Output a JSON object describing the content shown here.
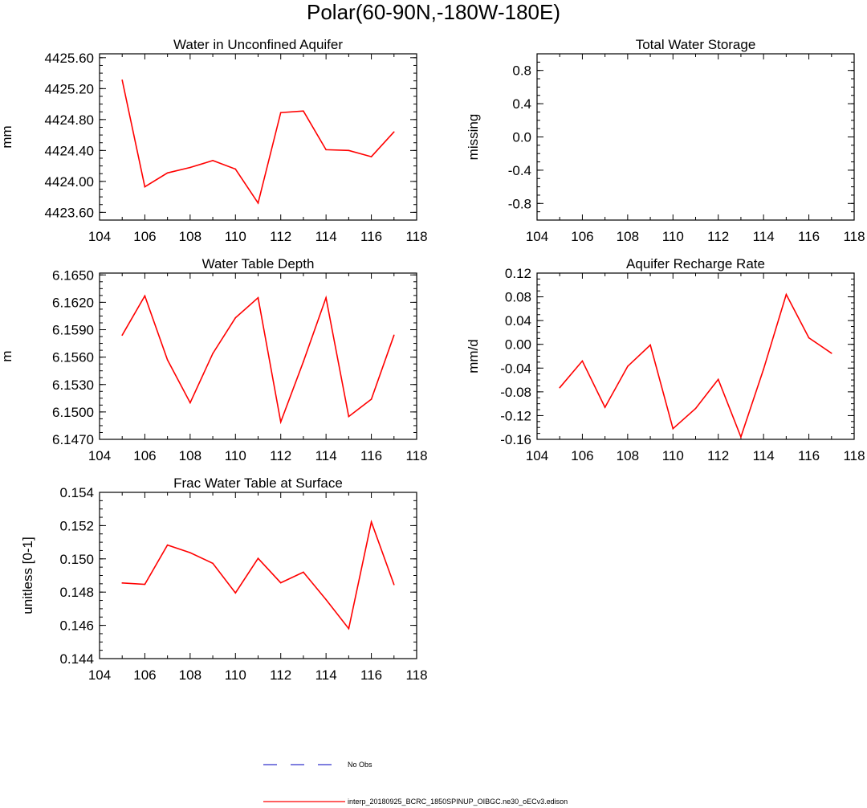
{
  "title": "Polar(60-90N,-180W-180E)",
  "colors": {
    "model": "#ff0000",
    "obs": "#3333cc",
    "axis": "#000000"
  },
  "legend": {
    "obs_label": "No Obs",
    "model_label": "interp_20180925_BCRC_1850SPINUP_OIBGC.ne30_oECv3.edison"
  },
  "chart_data": [
    {
      "type": "line",
      "title": "Water in Unconfined Aquifer",
      "xlabel": "",
      "ylabel": "mm",
      "xlim": [
        104,
        118
      ],
      "ylim": [
        4423.5,
        4425.65
      ],
      "xticks": [
        104,
        106,
        108,
        110,
        112,
        114,
        116,
        118
      ],
      "xtick_labels": [
        "104",
        "106",
        "108",
        "110",
        "112",
        "114",
        "116",
        "118"
      ],
      "yticks": [
        4423.6,
        4424.0,
        4424.4,
        4424.8,
        4425.2,
        4425.6
      ],
      "ytick_labels": [
        "4423.60",
        "4424.00",
        "4424.40",
        "4424.80",
        "4425.20",
        "4425.60"
      ],
      "series": [
        {
          "name": "interp_20180925_BCRC_1850SPINUP_OIBGC.ne30_oECv3.edison",
          "x": [
            105,
            106,
            107,
            108,
            109,
            110,
            111,
            112,
            113,
            114,
            115,
            116,
            117
          ],
          "values": [
            4425.31,
            4423.93,
            4424.11,
            4424.18,
            4424.27,
            4424.16,
            4423.72,
            4424.89,
            4424.91,
            4424.41,
            4424.4,
            4424.32,
            4424.64
          ]
        }
      ]
    },
    {
      "type": "line",
      "title": "Total Water Storage",
      "xlabel": "",
      "ylabel": "missing",
      "xlim": [
        104,
        118
      ],
      "ylim": [
        -1.0,
        1.0
      ],
      "xticks": [
        104,
        106,
        108,
        110,
        112,
        114,
        116,
        118
      ],
      "xtick_labels": [
        "104",
        "106",
        "108",
        "110",
        "112",
        "114",
        "116",
        "118"
      ],
      "yticks": [
        -0.8,
        -0.4,
        0.0,
        0.4,
        0.8
      ],
      "ytick_labels": [
        "-0.8",
        "-0.4",
        "0.0",
        "0.4",
        "0.8"
      ],
      "series": []
    },
    {
      "type": "line",
      "title": "Water Table Depth",
      "xlabel": "",
      "ylabel": "m",
      "xlim": [
        104,
        118
      ],
      "ylim": [
        6.147,
        6.1652
      ],
      "xticks": [
        104,
        106,
        108,
        110,
        112,
        114,
        116,
        118
      ],
      "xtick_labels": [
        "104",
        "106",
        "108",
        "110",
        "112",
        "114",
        "116",
        "118"
      ],
      "yticks": [
        6.147,
        6.15,
        6.153,
        6.156,
        6.159,
        6.162,
        6.165
      ],
      "ytick_labels": [
        "6.1470",
        "6.1500",
        "6.1530",
        "6.1560",
        "6.1590",
        "6.1620",
        "6.1650"
      ],
      "series": [
        {
          "name": "interp_20180925_BCRC_1850SPINUP_OIBGC.ne30_oECv3.edison",
          "x": [
            105,
            106,
            107,
            108,
            109,
            110,
            111,
            112,
            113,
            114,
            115,
            116,
            117
          ],
          "values": [
            6.1584,
            6.1627,
            6.1557,
            6.151,
            6.1564,
            6.1603,
            6.1625,
            6.1489,
            6.1555,
            6.1625,
            6.1495,
            6.1514,
            6.1584
          ]
        }
      ]
    },
    {
      "type": "line",
      "title": "Aquifer Recharge Rate",
      "xlabel": "",
      "ylabel": "mm/d",
      "xlim": [
        104,
        118
      ],
      "ylim": [
        -0.16,
        0.12
      ],
      "xticks": [
        104,
        106,
        108,
        110,
        112,
        114,
        116,
        118
      ],
      "xtick_labels": [
        "104",
        "106",
        "108",
        "110",
        "112",
        "114",
        "116",
        "118"
      ],
      "yticks": [
        -0.16,
        -0.12,
        -0.08,
        -0.04,
        0.0,
        0.04,
        0.08,
        0.12
      ],
      "ytick_labels": [
        "-0.16",
        "-0.12",
        "-0.08",
        "-0.04",
        "0.00",
        "0.04",
        "0.08",
        "0.12"
      ],
      "series": [
        {
          "name": "interp_20180925_BCRC_1850SPINUP_OIBGC.ne30_oECv3.edison",
          "x": [
            105,
            106,
            107,
            108,
            109,
            110,
            111,
            112,
            113,
            114,
            115,
            116,
            117
          ],
          "values": [
            -0.073,
            -0.028,
            -0.106,
            -0.037,
            -0.001,
            -0.142,
            -0.108,
            -0.059,
            -0.156,
            -0.042,
            0.084,
            0.011,
            -0.015
          ]
        }
      ]
    },
    {
      "type": "line",
      "title": "Frac Water Table at Surface",
      "xlabel": "",
      "ylabel": "unitless [0-1]",
      "xlim": [
        104,
        118
      ],
      "ylim": [
        0.144,
        0.154
      ],
      "xticks": [
        104,
        106,
        108,
        110,
        112,
        114,
        116,
        118
      ],
      "xtick_labels": [
        "104",
        "106",
        "108",
        "110",
        "112",
        "114",
        "116",
        "118"
      ],
      "yticks": [
        0.144,
        0.146,
        0.148,
        0.15,
        0.152,
        0.154
      ],
      "ytick_labels": [
        "0.144",
        "0.146",
        "0.148",
        "0.150",
        "0.152",
        "0.154"
      ],
      "series": [
        {
          "name": "interp_20180925_BCRC_1850SPINUP_OIBGC.ne30_oECv3.edison",
          "x": [
            105,
            106,
            107,
            108,
            109,
            110,
            111,
            112,
            113,
            114,
            115,
            116,
            117
          ],
          "values": [
            0.14855,
            0.14847,
            0.15083,
            0.15037,
            0.14973,
            0.14795,
            0.15003,
            0.14856,
            0.1492,
            0.14755,
            0.1458,
            0.15222,
            0.14845
          ]
        }
      ]
    }
  ]
}
